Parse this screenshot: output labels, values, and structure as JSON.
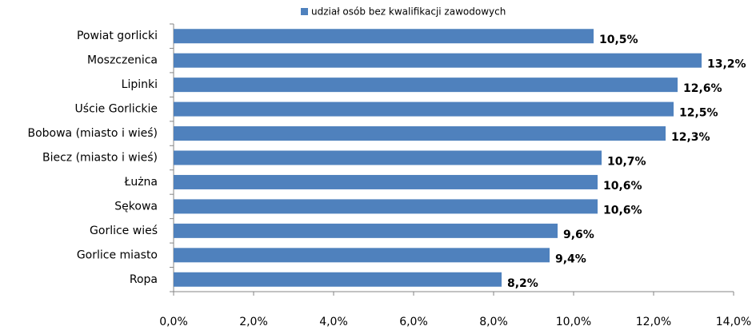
{
  "chart_data": {
    "type": "hbar",
    "categories": [
      "Powiat gorlicki",
      "Moszczenica",
      "Lipinki",
      "Uście Gorlickie",
      "Bobowa (miasto  i wieś)",
      "Biecz (miasto  i wieś)",
      "Łużna",
      "Sękowa",
      "Gorlice wieś",
      "Gorlice miasto",
      "Ropa"
    ],
    "series": [
      {
        "name": "udział osób bez kwalifikacji zawodowych",
        "color": "#4f81bd",
        "values": [
          10.5,
          13.2,
          12.6,
          12.5,
          12.3,
          10.7,
          10.6,
          10.6,
          9.6,
          9.4,
          8.2
        ],
        "value_labels": [
          "10,5%",
          "13,2%",
          "12,6%",
          "12,5%",
          "12,3%",
          "10,7%",
          "10,6%",
          "10,6%",
          "9,6%",
          "9,4%",
          "8,2%"
        ]
      }
    ],
    "xlim": [
      0,
      14
    ],
    "xticks": [
      {
        "value": 0,
        "label": "0,0%"
      },
      {
        "value": 2,
        "label": "2,0%"
      },
      {
        "value": 4,
        "label": "4,0%"
      },
      {
        "value": 6,
        "label": "6,0%"
      },
      {
        "value": 8,
        "label": "8,0%"
      },
      {
        "value": 10,
        "label": "10,0%"
      },
      {
        "value": 12,
        "label": "12,0%"
      },
      {
        "value": 14,
        "label": "14,0%"
      }
    ],
    "grid": false,
    "legend": "top"
  }
}
